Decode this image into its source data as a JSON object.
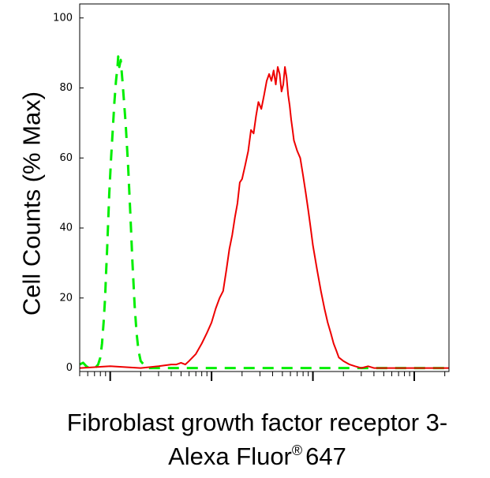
{
  "chart_data": {
    "type": "line",
    "title": "",
    "ylabel": "Cell Counts (% Max)",
    "xlabel_line1": "Fibroblast growth factor receptor 3-",
    "xlabel_line2_text": "Alexa Fluor",
    "xlabel_line2_mark": "®",
    "xlabel_line2_number": "647",
    "x_scale": "log",
    "xlim": [
      0.5,
      2200
    ],
    "ylim": [
      -1,
      104
    ],
    "y_ticks": [
      "0",
      "20",
      "40",
      "60",
      "80",
      "100"
    ],
    "y_tick_values": [
      0,
      20,
      40,
      60,
      80,
      100
    ],
    "x_major_ticks": [
      1,
      10,
      100,
      1000
    ],
    "grid": false,
    "legend": "none",
    "series": [
      {
        "color": "#00ee00",
        "line_style": "dashed",
        "x": [
          0.5,
          0.54,
          0.58,
          0.62,
          0.66,
          0.71,
          0.76,
          0.8,
          0.83,
          0.86,
          0.89,
          0.91,
          0.93,
          0.95,
          0.98,
          1.02,
          1.06,
          1.1,
          1.14,
          1.18,
          1.2,
          1.23,
          1.27,
          1.32,
          1.37,
          1.42,
          1.5,
          1.58,
          1.66,
          1.74,
          1.82,
          1.9,
          2.0,
          2.3,
          3,
          10,
          100,
          1000,
          2200
        ],
        "y": [
          1,
          1.5,
          0.5,
          0,
          0,
          0,
          1,
          3,
          7,
          13,
          20,
          27,
          33,
          40,
          50,
          60,
          68,
          76,
          82,
          86,
          89,
          86,
          88,
          82,
          76,
          70,
          58,
          44,
          30,
          18,
          10,
          5,
          2,
          0,
          0,
          0,
          0,
          0,
          0
        ]
      },
      {
        "color": "#ee0000",
        "line_style": "solid",
        "x": [
          0.5,
          1,
          2,
          3,
          4,
          4.5,
          5,
          5.5,
          6,
          7,
          8,
          9,
          10,
          11,
          12,
          13,
          14,
          15,
          16,
          17,
          18,
          19,
          20,
          21.5,
          23,
          24.5,
          26,
          27.5,
          29,
          31,
          33,
          35,
          37,
          39,
          41,
          43,
          45,
          47,
          49,
          51,
          53,
          55,
          57,
          59,
          61,
          63,
          65,
          70,
          75,
          80,
          85,
          90,
          95,
          100,
          110,
          120,
          130,
          140,
          150,
          160,
          170,
          180,
          200,
          230,
          260,
          300,
          350,
          400,
          450,
          500,
          600,
          700,
          800,
          900,
          1000,
          1200,
          1500,
          2200
        ],
        "y": [
          0,
          0.5,
          0,
          0.5,
          1,
          1,
          1.5,
          1,
          2,
          4,
          7,
          10,
          13,
          17,
          20,
          22,
          28,
          34,
          38,
          43,
          47,
          53,
          54,
          58,
          62,
          68,
          67,
          72,
          76,
          74,
          78,
          82,
          84,
          82,
          85,
          81,
          86,
          84,
          79,
          81,
          86,
          83,
          78,
          75,
          71,
          68,
          65,
          62,
          60,
          55,
          50,
          45,
          40,
          35,
          28,
          22,
          17,
          13,
          10,
          7,
          5,
          3,
          2,
          1,
          0.5,
          0,
          0.5,
          0,
          0,
          0,
          0,
          0,
          0,
          0,
          0,
          0,
          0,
          0
        ]
      }
    ]
  }
}
